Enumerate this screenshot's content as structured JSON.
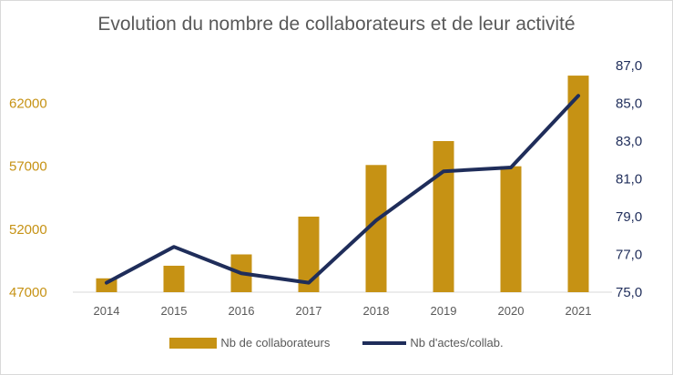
{
  "chart_data": {
    "type": "bar",
    "title": "Evolution du nombre de collaborateurs et de leur activité",
    "categories": [
      "2014",
      "2015",
      "2016",
      "2017",
      "2018",
      "2019",
      "2020",
      "2021"
    ],
    "series": [
      {
        "name": "Nb de collaborateurs",
        "type": "bar",
        "axis": "left",
        "color": "#c69214",
        "values": [
          48100,
          49100,
          50000,
          53000,
          57100,
          59000,
          57000,
          64200
        ]
      },
      {
        "name": "Nb d'actes/collab.",
        "type": "line",
        "axis": "right",
        "color": "#1f2d5a",
        "values": [
          75.5,
          77.4,
          76.0,
          75.5,
          78.8,
          81.4,
          81.6,
          85.4
        ]
      }
    ],
    "y_left": {
      "ticks": [
        "47000",
        "52000",
        "57000",
        "62000"
      ],
      "tick_values": [
        47000,
        52000,
        57000,
        62000
      ],
      "ylim": [
        47000,
        65000
      ]
    },
    "y_right": {
      "ticks": [
        "75,0",
        "77,0",
        "79,0",
        "81,0",
        "83,0",
        "85,0",
        "87,0"
      ],
      "tick_values": [
        75,
        77,
        79,
        81,
        83,
        85,
        87
      ],
      "ylim": [
        75,
        87
      ]
    },
    "grid": false,
    "legend_position": "bottom"
  }
}
